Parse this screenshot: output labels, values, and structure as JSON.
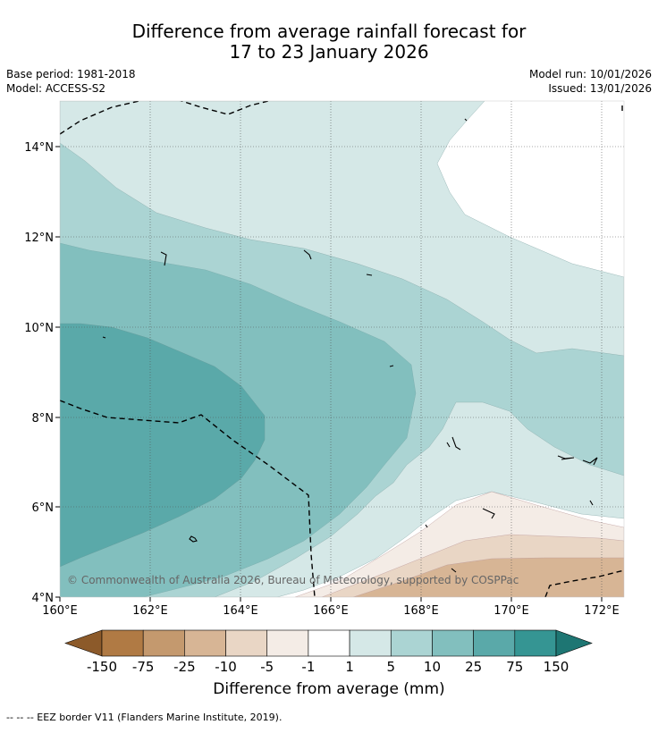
{
  "title": {
    "line1": "Difference from average rainfall forecast for",
    "line2": "17 to 23 January 2026"
  },
  "meta": {
    "base_period": "Base period: 1981-2018",
    "model": "Model: ACCESS-S2",
    "model_run": "Model run: 10/01/2026",
    "issued": "Issued: 13/01/2026"
  },
  "map": {
    "lat_labels": [
      "14°N",
      "12°N",
      "10°N",
      "8°N",
      "6°N",
      "4°N"
    ],
    "lon_labels": [
      "160°E",
      "162°E",
      "164°E",
      "166°E",
      "168°E",
      "170°E",
      "172°E"
    ],
    "copyright": "© Commonwealth of Australia 2026, Bureau of Meteorology, supported by COSPPac"
  },
  "colorbar": {
    "ticks": [
      "-150",
      "-75",
      "-25",
      "-10",
      "-5",
      "-1",
      "1",
      "5",
      "10",
      "25",
      "75",
      "150"
    ],
    "colors": [
      "#8c5a2a",
      "#b07a44",
      "#c4996e",
      "#d7b595",
      "#e9d6c5",
      "#f4ece6",
      "#ffffff",
      "#d5e8e7",
      "#abd4d3",
      "#82bfbe",
      "#5aa9a9",
      "#359593",
      "#1e7673"
    ],
    "label": "Difference from average (mm)"
  },
  "footnote": "-- -- -- EEZ border V11 (Flanders Marine Institute, 2019)."
}
